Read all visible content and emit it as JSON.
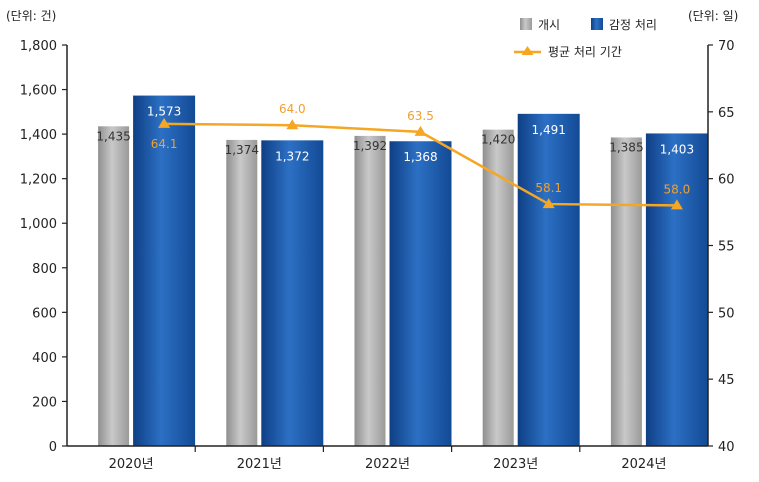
{
  "chart_data": {
    "type": "bar",
    "categories": [
      "2020년",
      "2021년",
      "2022년",
      "2023년",
      "2024년"
    ],
    "series": [
      {
        "name": "개시",
        "type": "bar",
        "axis": "left",
        "values": [
          1435,
          1374,
          1392,
          1420,
          1385
        ],
        "color": "#a6a6a6"
      },
      {
        "name": "감정 처리",
        "type": "bar",
        "axis": "left",
        "values": [
          1573,
          1372,
          1368,
          1491,
          1403
        ],
        "color": "#1f5fae"
      },
      {
        "name": "평균 처리 기간",
        "type": "line",
        "axis": "right",
        "values": [
          64.1,
          64.0,
          63.5,
          58.1,
          58.0
        ],
        "color": "#f5a623"
      }
    ],
    "y_left": {
      "unit_label": "(단위: 건)",
      "ylim": [
        0,
        1800
      ],
      "ticks": [
        0,
        200,
        400,
        600,
        800,
        1000,
        1200,
        1400,
        1600,
        1800
      ],
      "tick_labels": [
        "0",
        "200",
        "400",
        "600",
        "800",
        "1,000",
        "1,200",
        "1,400",
        "1,600",
        "1,800"
      ]
    },
    "y_right": {
      "unit_label": "(단위: 일)",
      "ylim": [
        40,
        70
      ],
      "ticks": [
        40,
        45,
        50,
        55,
        60,
        65,
        70
      ],
      "tick_labels": [
        "40",
        "45",
        "50",
        "55",
        "60",
        "65",
        "70"
      ]
    },
    "data_labels": {
      "개시": [
        "1,435",
        "1,374",
        "1,392",
        "1,420",
        "1,385"
      ],
      "감정 처리": [
        "1,573",
        "1,372",
        "1,368",
        "1,491",
        "1,403"
      ],
      "평균 처리 기간": [
        "64.1",
        "64.0",
        "63.5",
        "58.1",
        "58.0"
      ]
    },
    "legend": {
      "placement": "top-right",
      "items": [
        "개시",
        "감정 처리",
        "평균 처리 기간"
      ]
    },
    "grid": false
  }
}
